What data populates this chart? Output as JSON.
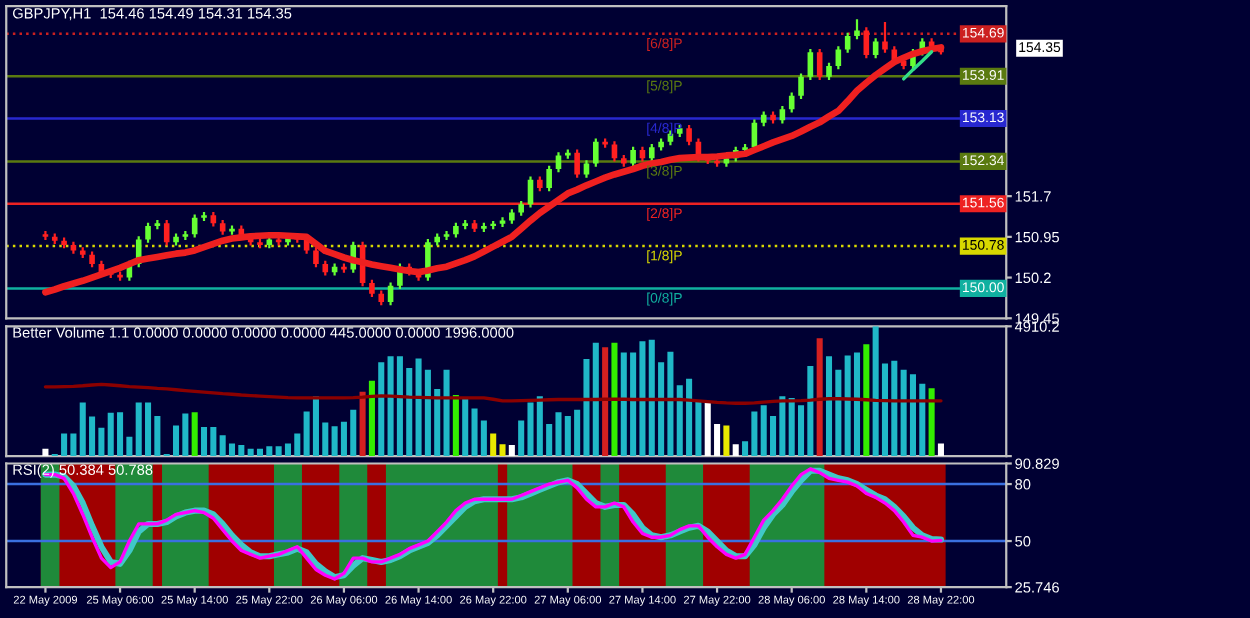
{
  "chart_data": [
    {
      "type": "candlestick",
      "title": "GBPJPY,H1  154.46 154.49 154.31 154.35",
      "categories": [
        null,
        null,
        null,
        null,
        null,
        null,
        null,
        null,
        null,
        null,
        null,
        null,
        null,
        null,
        null,
        null,
        null,
        null,
        null,
        null,
        null,
        null,
        null,
        null,
        null,
        null,
        null,
        null,
        null,
        null,
        null,
        null,
        null,
        null,
        null,
        null,
        null,
        null,
        null,
        null,
        null,
        null,
        null,
        null,
        null,
        null,
        null,
        null,
        null,
        null,
        null,
        null,
        null,
        null,
        null,
        null,
        null,
        null,
        null,
        null,
        null,
        null,
        null,
        null,
        null,
        null,
        null,
        null,
        null,
        null,
        null,
        null,
        null,
        null,
        null,
        null,
        null,
        null,
        null,
        null,
        null,
        null,
        null,
        null,
        null,
        null,
        null,
        null,
        null,
        null,
        null,
        null,
        null,
        null,
        null,
        null,
        null
      ],
      "ohlc": [
        [
          151.0,
          151.06,
          150.89,
          150.95
        ],
        [
          150.95,
          151.01,
          150.82,
          150.88
        ],
        [
          150.88,
          150.94,
          150.74,
          150.8
        ],
        [
          150.8,
          150.86,
          150.64,
          150.7
        ],
        [
          150.7,
          150.76,
          150.56,
          150.62
        ],
        [
          150.62,
          150.68,
          150.39,
          150.45
        ],
        [
          150.45,
          150.51,
          150.24,
          150.3
        ],
        [
          150.3,
          150.36,
          150.19,
          150.25
        ],
        [
          150.25,
          150.31,
          150.14,
          150.2
        ],
        [
          150.2,
          150.51,
          150.14,
          150.45
        ],
        [
          150.45,
          150.96,
          150.39,
          150.9
        ],
        [
          150.9,
          151.21,
          150.84,
          151.15
        ],
        [
          151.15,
          151.26,
          151.09,
          151.2
        ],
        [
          151.2,
          151.26,
          150.79,
          150.85
        ],
        [
          150.85,
          151.01,
          150.79,
          150.95
        ],
        [
          150.95,
          151.06,
          150.89,
          151.0
        ],
        [
          151.0,
          151.36,
          150.94,
          151.3
        ],
        [
          151.3,
          151.41,
          151.24,
          151.35
        ],
        [
          151.35,
          151.41,
          151.14,
          151.2
        ],
        [
          151.2,
          151.26,
          150.99,
          151.05
        ],
        [
          151.05,
          151.16,
          150.99,
          151.1
        ],
        [
          151.1,
          151.16,
          150.89,
          150.95
        ],
        [
          150.95,
          151.01,
          150.79,
          150.85
        ],
        [
          150.85,
          150.91,
          150.74,
          150.8
        ],
        [
          150.8,
          150.96,
          150.74,
          150.9
        ],
        [
          150.9,
          150.96,
          150.79,
          150.85
        ],
        [
          150.85,
          151.01,
          150.79,
          150.95
        ],
        [
          150.95,
          151.01,
          150.84,
          150.9
        ],
        [
          150.9,
          150.96,
          150.64,
          150.7
        ],
        [
          150.7,
          150.76,
          150.39,
          150.45
        ],
        [
          150.45,
          150.51,
          150.24,
          150.3
        ],
        [
          150.3,
          150.46,
          150.24,
          150.4
        ],
        [
          150.4,
          150.46,
          150.29,
          150.35
        ],
        [
          150.35,
          150.86,
          150.29,
          150.8
        ],
        [
          150.8,
          150.86,
          150.04,
          150.1
        ],
        [
          150.1,
          150.16,
          149.84,
          149.9
        ],
        [
          149.9,
          149.96,
          149.69,
          149.75
        ],
        [
          149.75,
          150.11,
          149.69,
          150.05
        ],
        [
          150.05,
          150.46,
          149.99,
          150.4
        ],
        [
          150.4,
          150.46,
          150.24,
          150.3
        ],
        [
          150.3,
          150.36,
          150.14,
          150.2
        ],
        [
          150.2,
          150.91,
          150.14,
          150.85
        ],
        [
          150.85,
          151.01,
          150.79,
          150.95
        ],
        [
          150.95,
          151.06,
          150.89,
          151.0
        ],
        [
          151.0,
          151.21,
          150.94,
          151.15
        ],
        [
          151.15,
          151.26,
          151.09,
          151.2
        ],
        [
          151.2,
          151.26,
          151.04,
          151.1
        ],
        [
          151.1,
          151.21,
          151.04,
          151.15
        ],
        [
          151.15,
          151.24,
          151.09,
          151.19
        ],
        [
          151.19,
          151.31,
          151.13,
          151.25
        ],
        [
          151.25,
          151.46,
          151.19,
          151.4
        ],
        [
          151.4,
          151.61,
          151.34,
          151.55
        ],
        [
          151.55,
          152.06,
          151.49,
          152.0
        ],
        [
          152.0,
          152.06,
          151.79,
          151.85
        ],
        [
          151.85,
          152.26,
          151.79,
          152.2
        ],
        [
          152.2,
          152.51,
          152.14,
          152.45
        ],
        [
          152.45,
          152.56,
          152.39,
          152.5
        ],
        [
          152.5,
          152.56,
          152.04,
          152.1
        ],
        [
          152.1,
          152.36,
          152.04,
          152.3
        ],
        [
          152.3,
          152.76,
          152.24,
          152.7
        ],
        [
          152.7,
          152.76,
          152.59,
          152.65
        ],
        [
          152.65,
          152.71,
          152.34,
          152.4
        ],
        [
          152.4,
          152.46,
          152.24,
          152.3
        ],
        [
          152.3,
          152.61,
          152.24,
          152.55
        ],
        [
          152.55,
          152.61,
          152.34,
          152.4
        ],
        [
          152.4,
          152.66,
          152.34,
          152.6
        ],
        [
          152.6,
          152.76,
          152.54,
          152.7
        ],
        [
          152.7,
          152.91,
          152.64,
          152.85
        ],
        [
          152.85,
          153.01,
          152.79,
          152.95
        ],
        [
          152.95,
          153.01,
          152.64,
          152.7
        ],
        [
          152.7,
          152.76,
          152.34,
          152.4
        ],
        [
          152.4,
          152.46,
          152.29,
          152.35
        ],
        [
          152.35,
          152.41,
          152.24,
          152.3
        ],
        [
          152.3,
          152.46,
          152.24,
          152.4
        ],
        [
          152.4,
          152.61,
          152.34,
          152.55
        ],
        [
          152.55,
          152.66,
          152.49,
          152.6
        ],
        [
          152.6,
          153.11,
          152.54,
          153.05
        ],
        [
          153.05,
          153.26,
          152.99,
          153.2
        ],
        [
          153.2,
          153.26,
          153.04,
          153.1
        ],
        [
          153.1,
          153.36,
          153.04,
          153.3
        ],
        [
          153.3,
          153.61,
          153.24,
          153.55
        ],
        [
          153.55,
          153.96,
          153.49,
          153.9
        ],
        [
          153.9,
          154.41,
          153.84,
          154.35
        ],
        [
          154.35,
          154.41,
          153.84,
          153.9
        ],
        [
          153.9,
          154.16,
          153.84,
          154.1
        ],
        [
          154.1,
          154.46,
          154.04,
          154.4
        ],
        [
          154.4,
          154.71,
          154.34,
          154.65
        ],
        [
          154.65,
          154.96,
          154.59,
          154.75
        ],
        [
          154.75,
          154.81,
          154.24,
          154.3
        ],
        [
          154.3,
          154.61,
          154.24,
          154.55
        ],
        [
          154.55,
          154.91,
          154.34,
          154.4
        ],
        [
          154.4,
          154.46,
          154.14,
          154.2
        ],
        [
          154.2,
          154.26,
          154.04,
          154.1
        ],
        [
          154.1,
          154.41,
          154.04,
          154.35
        ],
        [
          154.35,
          154.61,
          154.29,
          154.55
        ],
        [
          154.55,
          154.61,
          154.4,
          154.46
        ],
        [
          154.46,
          154.49,
          154.31,
          154.35
        ]
      ],
      "colors": [
        "#ff2020",
        "#ff2020",
        "#ff2020",
        "#ff2020",
        "#ff2020",
        "#ff2020",
        "#ff2020",
        "#ff2020",
        "#ff2020",
        "#66ff33",
        "#66ff33",
        "#66ff33",
        "#66ff33",
        "#ff2020",
        "#66ff33",
        "#66ff33",
        "#66ff33",
        "#66ff33",
        "#ff2020",
        "#ff2020",
        "#66ff33",
        "#ff2020",
        "#ff2020",
        "#ff2020",
        "#66ff33",
        "#ff2020",
        "#66ff33",
        "#ff2020",
        "#ff2020",
        "#ff2020",
        "#ff2020",
        "#66ff33",
        "#ff2020",
        "#66ff33",
        "#ff2020",
        "#ff2020",
        "#ff2020",
        "#66ff33",
        "#66ff33",
        "#ff2020",
        "#ff2020",
        "#66ff33",
        "#66ff33",
        "#66ff33",
        "#66ff33",
        "#66ff33",
        "#ff2020",
        "#66ff33",
        "#66ff33",
        "#66ff33",
        "#66ff33",
        "#66ff33",
        "#66ff33",
        "#ff2020",
        "#66ff33",
        "#66ff33",
        "#66ff33",
        "#ff2020",
        "#66ff33",
        "#66ff33",
        "#ff2020",
        "#ff2020",
        "#ff2020",
        "#66ff33",
        "#ff2020",
        "#66ff33",
        "#66ff33",
        "#66ff33",
        "#66ff33",
        "#ff2020",
        "#ff2020",
        "#ff2020",
        "#ff2020",
        "#66ff33",
        "#66ff33",
        "#66ff33",
        "#66ff33",
        "#66ff33",
        "#ff2020",
        "#66ff33",
        "#66ff33",
        "#66ff33",
        "#66ff33",
        "#ff2020",
        "#66ff33",
        "#66ff33",
        "#66ff33",
        "#66ff33",
        "#ff2020",
        "#66ff33",
        "#ff2020",
        "#ff2020",
        "#ff2020",
        "#66ff33",
        "#66ff33",
        "#ff2020",
        "#ff2020"
      ],
      "series": [
        {
          "type": "line",
          "color": "#ee2020",
          "values": [
            149.93,
            149.98,
            150.04,
            150.09,
            150.14,
            150.2,
            150.26,
            150.32,
            150.38,
            150.45,
            150.52,
            150.55,
            150.58,
            150.61,
            150.64,
            150.66,
            150.7,
            150.76,
            150.82,
            150.88,
            150.92,
            150.94,
            150.96,
            150.97,
            150.98,
            150.98,
            150.97,
            150.96,
            150.95,
            150.82,
            150.69,
            150.63,
            150.57,
            150.52,
            150.48,
            150.44,
            150.41,
            150.38,
            150.35,
            150.32,
            150.3,
            150.33,
            150.37,
            150.4,
            150.46,
            150.52,
            150.59,
            150.68,
            150.77,
            150.86,
            150.95,
            151.1,
            151.25,
            151.39,
            151.51,
            151.63,
            151.75,
            151.82,
            151.9,
            151.97,
            152.04,
            152.1,
            152.15,
            152.2,
            152.26,
            152.3,
            152.33,
            152.37,
            152.4,
            152.41,
            152.42,
            152.42,
            152.43,
            152.45,
            152.46,
            152.48,
            152.55,
            152.62,
            152.69,
            152.75,
            152.81,
            152.89,
            152.98,
            153.06,
            153.17,
            153.27,
            153.45,
            153.64,
            153.79,
            153.93,
            154.05,
            154.17,
            154.25,
            154.32,
            154.37,
            154.41,
            154.44
          ]
        },
        {
          "type": "line",
          "color": "#33dd88",
          "values": [
            null,
            null,
            null,
            null,
            null,
            null,
            null,
            null,
            null,
            null,
            null,
            null,
            null,
            null,
            null,
            null,
            null,
            null,
            null,
            null,
            null,
            null,
            null,
            null,
            null,
            null,
            null,
            null,
            null,
            null,
            null,
            null,
            null,
            null,
            null,
            null,
            null,
            null,
            null,
            null,
            null,
            null,
            null,
            null,
            null,
            null,
            null,
            null,
            null,
            null,
            null,
            null,
            null,
            null,
            null,
            null,
            null,
            null,
            null,
            null,
            null,
            null,
            null,
            null,
            null,
            null,
            null,
            null,
            null,
            null,
            null,
            null,
            null,
            null,
            null,
            null,
            null,
            null,
            null,
            null,
            null,
            null,
            null,
            null,
            null,
            null,
            null,
            null,
            null,
            null,
            null,
            null,
            153.86,
            154.03,
            154.19,
            154.36,
            null
          ]
        }
      ],
      "ylim": [
        149.45,
        155.2
      ],
      "yticks": [
        149.45,
        150.2,
        150.95,
        151.7
      ],
      "ref_lines": [
        {
          "axis": "y",
          "value": 154.69,
          "label": "[6/8]P",
          "color": "#cc2020",
          "line_style": "dotted"
        },
        {
          "axis": "y",
          "value": 153.91,
          "label": "[5/8]P",
          "color": "#5a7a10",
          "line_style": "solid"
        },
        {
          "axis": "y",
          "value": 153.13,
          "label": "[4/8]P",
          "color": "#2828d0",
          "line_style": "solid"
        },
        {
          "axis": "y",
          "value": 152.34,
          "label": "[3/8]P",
          "color": "#5a7a10",
          "line_style": "solid"
        },
        {
          "axis": "y",
          "value": 151.56,
          "label": "[2/8]P",
          "color": "#ee2222",
          "line_style": "solid"
        },
        {
          "axis": "y",
          "value": 150.78,
          "label": "[1/8]P",
          "color": "#d8d800",
          "line_style": "dotted"
        },
        {
          "axis": "y",
          "value": 150.0,
          "label": "[0/8]P",
          "color": "#10b0a0",
          "line_style": "solid"
        }
      ],
      "annotations": [
        {
          "text": "154.69",
          "y": 154.69
        },
        "154.35",
        {
          "text": "153.91",
          "y": 153.91
        },
        {
          "text": "153.13",
          "y": 153.13
        },
        {
          "text": "152.34",
          "y": 152.34
        },
        {
          "text": "151.56",
          "y": 151.56
        },
        {
          "text": "150.78",
          "y": 150.78
        },
        {
          "text": "150.00",
          "y": 150.0
        }
      ],
      "tick_labels": "y"
    },
    {
      "type": "bar",
      "title": "Better Volume 1.1 0.0000 0.0000 0.0000 0.0000 445.0000 0.0000 1996.0000",
      "categories": [
        null,
        null,
        null,
        null,
        null,
        null,
        null,
        null,
        null,
        null,
        null,
        null,
        null,
        null,
        null,
        null,
        null,
        null,
        null,
        null,
        null,
        null,
        null,
        null,
        null,
        null,
        null,
        null,
        null,
        null,
        null,
        null,
        null,
        null,
        null,
        null,
        null,
        null,
        null,
        null,
        null,
        null,
        null,
        null,
        null,
        null,
        null,
        null,
        null,
        null,
        null,
        null,
        null,
        null,
        null,
        null,
        null,
        null,
        null,
        null,
        null,
        null,
        null,
        null,
        null,
        null,
        null,
        null,
        null,
        null,
        null,
        null,
        null,
        null,
        null,
        null,
        null,
        null,
        null,
        null,
        null,
        null,
        null,
        null,
        null,
        null,
        null,
        null,
        null,
        null,
        null,
        null,
        null,
        null,
        null,
        null,
        null
      ],
      "series": [
        {
          "colors": [
            "#ffffff",
            "#20b8c8",
            "#20b8c8",
            "#20b8c8",
            "#20b8c8",
            "#20b8c8",
            "#20b8c8",
            "#20b8c8",
            "#20b8c8",
            "#20b8c8",
            "#20b8c8",
            "#20b8c8",
            "#20b8c8",
            "#20b8c8",
            "#20b8c8",
            "#20b8c8",
            "#33ee00",
            "#20b8c8",
            "#20b8c8",
            "#20b8c8",
            "#20b8c8",
            "#20b8c8",
            "#20b8c8",
            "#20b8c8",
            "#20b8c8",
            "#20b8c8",
            "#20b8c8",
            "#20b8c8",
            "#20b8c8",
            "#20b8c8",
            "#20b8c8",
            "#20b8c8",
            "#20b8c8",
            "#20b8c8",
            "#d42020",
            "#33ee00",
            "#20b8c8",
            "#20b8c8",
            "#20b8c8",
            "#20b8c8",
            "#20b8c8",
            "#20b8c8",
            "#20b8c8",
            "#20b8c8",
            "#33ee00",
            "#20b8c8",
            "#20b8c8",
            "#20b8c8",
            "#e8e800",
            "#e8e800",
            "#ffffff",
            "#20b8c8",
            "#20b8c8",
            "#20b8c8",
            "#20b8c8",
            "#20b8c8",
            "#20b8c8",
            "#20b8c8",
            "#20b8c8",
            "#20b8c8",
            "#d42020",
            "#33ee00",
            "#20b8c8",
            "#20b8c8",
            "#20b8c8",
            "#20b8c8",
            "#20b8c8",
            "#20b8c8",
            "#20b8c8",
            "#20b8c8",
            "#20b8c8",
            "#ffffff",
            "#ffffff",
            "#e8e800",
            "#ffffff",
            "#20b8c8",
            "#20b8c8",
            "#20b8c8",
            "#20b8c8",
            "#20b8c8",
            "#20b8c8",
            "#20b8c8",
            "#20b8c8",
            "#d42020",
            "#20b8c8",
            "#20b8c8",
            "#20b8c8",
            "#20b8c8",
            "#33ee00",
            "#20b8c8",
            "#20b8c8",
            "#20b8c8",
            "#20b8c8",
            "#20b8c8",
            "#20b8c8",
            "#33ee00",
            "#ffffff"
          ],
          "values": [
            280,
            80,
            850,
            850,
            2030,
            1500,
            1070,
            1640,
            1660,
            730,
            2030,
            2030,
            1520,
            80,
            1160,
            1610,
            1660,
            1100,
            1100,
            790,
            480,
            420,
            280,
            280,
            370,
            370,
            480,
            850,
            1690,
            2260,
            1270,
            1130,
            1300,
            1750,
            2430,
            2850,
            3550,
            3780,
            3780,
            3330,
            3690,
            3270,
            2540,
            3270,
            2310,
            2170,
            1800,
            1350,
            850,
            450,
            420,
            1350,
            2030,
            2260,
            1210,
            1660,
            1520,
            1750,
            3670,
            4290,
            4120,
            4290,
            3920,
            3920,
            4340,
            4400,
            3550,
            3950,
            2680,
            2930,
            2090,
            2030,
            1210,
            1160,
            450,
            560,
            1690,
            1920,
            1520,
            2260,
            2200,
            1920,
            3410,
            4460,
            3780,
            3270,
            3810,
            3920,
            4230,
            4910,
            3500,
            3610,
            3270,
            3100,
            2740,
            2570,
            480
          ]
        },
        {
          "type": "line",
          "color": "#8b0000",
          "values": [
            2620,
            2620,
            2630,
            2640,
            2660,
            2690,
            2710,
            2690,
            2660,
            2630,
            2610,
            2590,
            2560,
            2540,
            2510,
            2480,
            2450,
            2420,
            2390,
            2360,
            2340,
            2310,
            2290,
            2270,
            2250,
            2230,
            2210,
            2200,
            2200,
            2200,
            2200,
            2200,
            2200,
            2210,
            2230,
            2260,
            2280,
            2270,
            2250,
            2230,
            2220,
            2210,
            2200,
            2200,
            2200,
            2200,
            2200,
            2200,
            2150,
            2090,
            2090,
            2100,
            2110,
            2120,
            2130,
            2140,
            2140,
            2140,
            2140,
            2140,
            2150,
            2150,
            2150,
            2140,
            2140,
            2140,
            2140,
            2140,
            2140,
            2120,
            2090,
            2060,
            2030,
            2010,
            2000,
            2000,
            2010,
            2040,
            2070,
            2090,
            2090,
            2100,
            2120,
            2150,
            2170,
            2170,
            2160,
            2150,
            2130,
            2110,
            2100,
            2090,
            2090,
            2090,
            2090,
            2090,
            2090
          ]
        }
      ],
      "ylim": [
        0,
        4910.2
      ],
      "yticks": [
        {
          "value": 0,
          "label": null
        },
        4910.2
      ],
      "tick_labels": "y"
    },
    {
      "type": "line",
      "title": "RSI(2) 50.384 50.788",
      "categories": [
        "22 May 2009",
        null,
        null,
        null,
        null,
        null,
        null,
        null,
        "25 May 06:00",
        null,
        null,
        null,
        null,
        null,
        null,
        null,
        "25 May 14:00",
        null,
        null,
        null,
        null,
        null,
        null,
        null,
        "25 May 22:00",
        null,
        null,
        null,
        null,
        null,
        null,
        null,
        "26 May 06:00",
        null,
        null,
        null,
        null,
        null,
        null,
        null,
        "26 May 14:00",
        null,
        null,
        null,
        null,
        null,
        null,
        null,
        "26 May 22:00",
        null,
        null,
        null,
        null,
        null,
        null,
        null,
        "27 May 06:00",
        null,
        null,
        null,
        null,
        null,
        null,
        null,
        "27 May 14:00",
        null,
        null,
        null,
        null,
        null,
        null,
        null,
        "27 May 22:00",
        null,
        null,
        null,
        null,
        null,
        null,
        null,
        "28 May 06:00",
        null,
        null,
        null,
        null,
        null,
        null,
        null,
        "28 May 14:00",
        null,
        null,
        null,
        null,
        null,
        null,
        null,
        "28 May 22:00"
      ],
      "series": [
        {
          "color": "#40c8c8",
          "values": [
            85,
            85,
            84,
            79,
            70,
            58,
            47,
            39,
            38,
            45,
            55,
            59,
            59,
            60,
            63,
            65,
            66,
            66,
            64,
            59,
            53,
            48,
            44,
            42,
            42,
            43,
            44,
            46,
            44,
            38,
            34,
            31,
            32,
            37,
            41,
            40,
            39,
            40,
            42,
            45,
            47,
            49,
            53,
            58,
            63,
            68,
            71,
            72,
            72,
            72,
            72,
            73,
            75,
            77,
            79,
            81,
            82,
            80,
            75,
            70,
            68,
            69,
            69,
            64,
            57,
            53,
            52,
            53,
            55,
            57,
            58,
            55,
            50,
            45,
            42,
            42,
            48,
            57,
            64,
            69,
            76,
            82,
            87,
            87,
            85,
            83,
            82,
            80,
            77,
            74,
            72,
            68,
            63,
            57,
            53,
            51,
            50.788
          ]
        },
        {
          "color": "#ff00ff",
          "values": [
            85,
            85,
            83,
            75,
            64,
            52,
            41,
            36,
            39,
            50,
            59,
            59,
            59,
            61,
            64,
            65,
            66,
            65,
            62,
            56,
            50,
            45,
            43,
            41,
            42,
            43,
            45,
            47,
            41,
            35,
            32,
            30,
            33,
            41,
            41,
            39,
            39,
            41,
            43,
            46,
            48,
            50,
            55,
            60,
            66,
            70,
            72,
            72,
            72,
            72,
            72,
            74,
            76,
            78,
            80,
            81,
            82,
            78,
            72,
            68,
            68,
            70,
            68,
            60,
            54,
            52,
            52,
            53,
            56,
            58,
            58,
            52,
            47,
            43,
            41,
            43,
            52,
            61,
            66,
            72,
            79,
            85,
            88,
            86,
            83,
            82,
            81,
            79,
            75,
            73,
            70,
            66,
            60,
            53,
            52,
            50,
            50.384
          ]
        }
      ],
      "ylim": [
        25.746,
        90.829
      ],
      "yticks": [
        25.746,
        50,
        80,
        90.829
      ],
      "ref_lines": [
        {
          "axis": "y",
          "value": 80,
          "color": "#3a70e0",
          "line_style": "solid"
        },
        {
          "axis": "y",
          "value": 50,
          "color": "#3a70e0",
          "line_style": "solid"
        }
      ]
    }
  ]
}
